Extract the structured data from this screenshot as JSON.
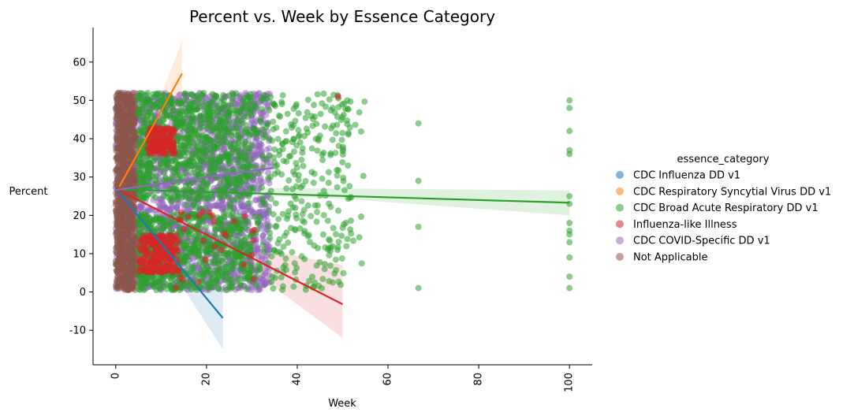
{
  "chart_data": {
    "type": "scatter",
    "title": "Percent vs. Week by Essence Category",
    "xlabel": "Week",
    "ylabel": "Percent",
    "xlim": [
      -5,
      105
    ],
    "ylim": [
      -19,
      69
    ],
    "xticks": [
      0,
      20,
      40,
      60,
      80,
      100
    ],
    "yticks": [
      -10,
      0,
      10,
      20,
      30,
      40,
      50,
      60
    ],
    "legend_title": "essence_category",
    "legend_position": "right",
    "series": [
      {
        "name": "CDC Influenza DD v1",
        "color": "#1f77b4",
        "regression": {
          "x0": 0,
          "y0": 27.0,
          "x1": 23.6,
          "y1": -6.8
        },
        "ci_upper": [
          [
            0,
            27.0
          ],
          [
            10,
            15.0
          ],
          [
            23.6,
            1.5
          ]
        ],
        "ci_lower": [
          [
            0,
            27.0
          ],
          [
            10,
            10.0
          ],
          [
            23.6,
            -15.0
          ]
        ]
      },
      {
        "name": "CDC Respiratory Syncytial Virus DD v1",
        "color": "#ff7f0e",
        "regression": {
          "x0": 0.8,
          "y0": 27.5,
          "x1": 14.6,
          "y1": 57.0
        },
        "ci_upper": [
          [
            0.8,
            27.5
          ],
          [
            7,
            42.0
          ],
          [
            14.6,
            65.5
          ]
        ],
        "ci_lower": [
          [
            0.8,
            27.5
          ],
          [
            7,
            38.5
          ],
          [
            14.6,
            49.5
          ]
        ]
      },
      {
        "name": "CDC Broad Acute Respiratory DD v1",
        "color": "#2ca02c",
        "regression": {
          "x0": 0,
          "y0": 26.8,
          "x1": 100,
          "y1": 23.3
        },
        "ci_upper": [
          [
            0,
            27.3
          ],
          [
            50,
            27.0
          ],
          [
            100,
            26.5
          ]
        ],
        "ci_lower": [
          [
            0,
            26.3
          ],
          [
            50,
            24.3
          ],
          [
            100,
            20.0
          ]
        ],
        "outliers": [
          [
            66.7,
            44
          ],
          [
            66.7,
            29
          ],
          [
            66.7,
            17
          ],
          [
            66.7,
            1
          ],
          [
            100,
            50
          ],
          [
            100,
            48
          ],
          [
            100,
            42
          ],
          [
            100,
            37
          ],
          [
            100,
            36
          ],
          [
            100,
            25
          ],
          [
            100,
            23
          ],
          [
            100,
            18
          ],
          [
            100,
            16
          ],
          [
            100,
            15
          ],
          [
            100,
            13
          ],
          [
            100,
            9
          ],
          [
            100,
            4
          ],
          [
            100,
            1
          ]
        ]
      },
      {
        "name": "Influenza-like Illness",
        "color": "#d62728",
        "regression": {
          "x0": 0,
          "y0": 27.0,
          "x1": 50,
          "y1": -3.2
        },
        "ci_upper": [
          [
            0,
            27.0
          ],
          [
            25,
            13.0
          ],
          [
            50,
            7.0
          ]
        ],
        "ci_lower": [
          [
            0,
            27.0
          ],
          [
            25,
            10.0
          ],
          [
            50,
            -12.0
          ]
        ]
      },
      {
        "name": "CDC COVID-Specific DD v1",
        "color": "#9467bd",
        "regression": {
          "x0": 0,
          "y0": 26.6,
          "x1": 34.8,
          "y1": 32.4
        },
        "ci_upper": [
          [
            0,
            27.0
          ],
          [
            17,
            30.0
          ],
          [
            34.8,
            34.0
          ]
        ],
        "ci_lower": [
          [
            0,
            26.2
          ],
          [
            17,
            28.5
          ],
          [
            34.8,
            30.8
          ]
        ]
      },
      {
        "name": "Not Applicable",
        "color": "#8c564b"
      }
    ]
  }
}
